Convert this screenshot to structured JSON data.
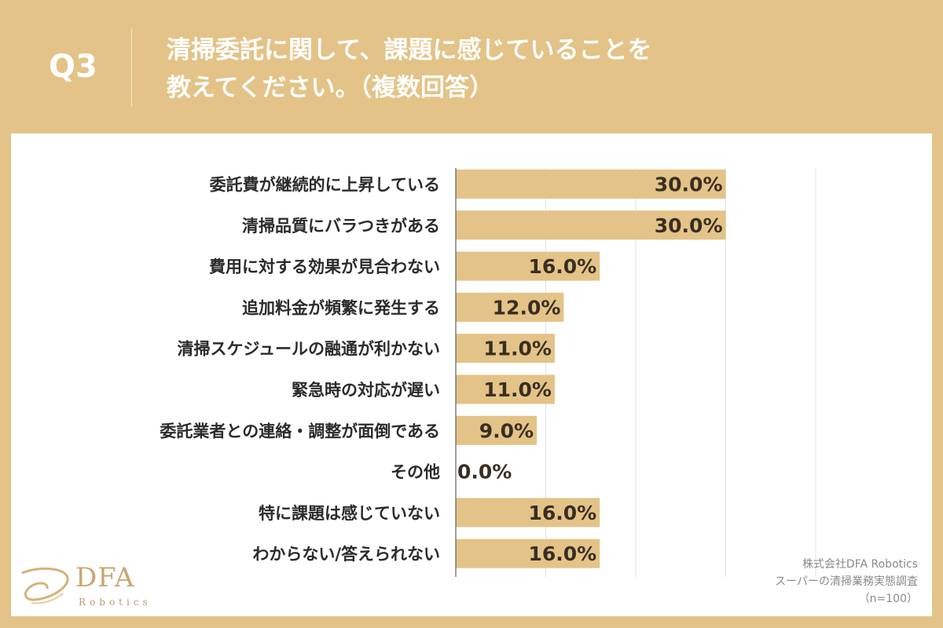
{
  "header": {
    "q_number": "Q3",
    "question_line1": "清掃委託に関して、課題に感じていることを",
    "question_line2": "教えてください。（複数回答）"
  },
  "chart_data": {
    "type": "bar",
    "orientation": "horizontal",
    "categories": [
      "委託費が継続的に上昇している",
      "清掃品質にバラつきがある",
      "費用に対する効果が見合わない",
      "追加料金が頻繁に発生する",
      "清掃スケジュールの融通が利かない",
      "緊急時の対応が遅い",
      "委託業者との連絡・調整が面倒である",
      "その他",
      "特に課題は感じていない",
      "わからない/答えられない"
    ],
    "values": [
      30.0,
      30.0,
      16.0,
      12.0,
      11.0,
      11.0,
      9.0,
      0.0,
      16.0,
      16.0
    ],
    "value_labels": [
      "30.0%",
      "30.0%",
      "16.0%",
      "12.0%",
      "11.0%",
      "11.0%",
      "9.0%",
      "0.0%",
      "16.0%",
      "16.0%"
    ],
    "xlim": [
      0,
      40
    ],
    "grid": true,
    "bar_color": "#e3c387"
  },
  "logo": {
    "name": "DFA",
    "sub": "Robotics"
  },
  "source": {
    "line1": "株式会社DFA Robotics",
    "line2": "スーパーの清掃業務実態調査",
    "line3": "（n=100）"
  }
}
